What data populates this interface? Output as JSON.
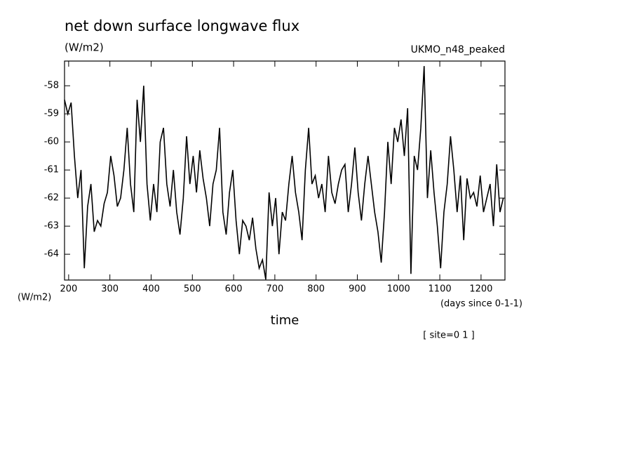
{
  "chart_data": {
    "type": "line",
    "title": "net down surface longwave flux",
    "units_label": "(W/m2)",
    "dataset": "UKMO_n48_peaked",
    "y_axis_units": "(W/m2)",
    "x_axis_units": "(days since 0-1-1)",
    "xlabel": "time",
    "annotation": "[ site=0 1 ]",
    "xlim": [
      190,
      1258
    ],
    "ylim": [
      -64.92,
      -57.12
    ],
    "xticks": [
      200,
      300,
      400,
      500,
      600,
      700,
      800,
      900,
      1000,
      1100,
      1200
    ],
    "yticks": [
      -58,
      -59,
      -60,
      -61,
      -62,
      -63,
      -64
    ],
    "color": "#000000",
    "x": [
      190,
      198,
      206,
      214,
      222,
      230,
      238,
      246,
      254,
      262,
      270,
      278,
      286,
      294,
      302,
      310,
      318,
      326,
      334,
      342,
      350,
      358,
      366,
      374,
      382,
      390,
      398,
      406,
      414,
      422,
      430,
      438,
      446,
      454,
      462,
      470,
      478,
      486,
      494,
      502,
      510,
      518,
      526,
      534,
      542,
      550,
      558,
      566,
      574,
      582,
      590,
      598,
      606,
      614,
      622,
      630,
      638,
      646,
      654,
      662,
      670,
      678,
      686,
      694,
      702,
      710,
      718,
      726,
      734,
      742,
      750,
      758,
      766,
      774,
      782,
      790,
      798,
      806,
      814,
      822,
      830,
      838,
      846,
      854,
      862,
      870,
      878,
      886,
      894,
      902,
      910,
      918,
      926,
      934,
      942,
      950,
      958,
      966,
      974,
      982,
      990,
      998,
      1006,
      1014,
      1022,
      1030,
      1038,
      1046,
      1054,
      1062,
      1070,
      1078,
      1086,
      1094,
      1102,
      1110,
      1118,
      1126,
      1134,
      1142,
      1150,
      1158,
      1166,
      1174,
      1182,
      1190,
      1198,
      1206,
      1214,
      1222,
      1230,
      1238,
      1246,
      1254
    ],
    "values": [
      -58.5,
      -59.0,
      -58.6,
      -60.5,
      -62.0,
      -61.0,
      -64.5,
      -62.3,
      -61.5,
      -63.2,
      -62.8,
      -63.0,
      -62.2,
      -61.8,
      -60.5,
      -61.2,
      -62.3,
      -62.0,
      -61.0,
      -59.5,
      -61.5,
      -62.5,
      -58.5,
      -60.0,
      -58.0,
      -61.5,
      -62.8,
      -61.5,
      -62.5,
      -60.0,
      -59.5,
      -61.5,
      -62.3,
      -61.0,
      -62.5,
      -63.3,
      -62.0,
      -59.8,
      -61.5,
      -60.5,
      -61.8,
      -60.3,
      -61.3,
      -62.0,
      -63.0,
      -61.5,
      -61.0,
      -59.5,
      -62.5,
      -63.3,
      -61.8,
      -61.0,
      -62.8,
      -64.0,
      -62.8,
      -63.0,
      -63.5,
      -62.7,
      -63.8,
      -64.5,
      -64.2,
      -64.9,
      -61.8,
      -63.0,
      -62.0,
      -64.0,
      -62.5,
      -62.8,
      -61.5,
      -60.5,
      -61.8,
      -62.5,
      -63.5,
      -61.0,
      -59.5,
      -61.5,
      -61.2,
      -62.0,
      -61.5,
      -62.5,
      -60.5,
      -61.8,
      -62.2,
      -61.5,
      -61.0,
      -60.8,
      -62.5,
      -61.5,
      -60.2,
      -61.8,
      -62.8,
      -61.5,
      -60.5,
      -61.5,
      -62.5,
      -63.2,
      -64.3,
      -62.5,
      -60.0,
      -61.5,
      -59.5,
      -60.0,
      -59.2,
      -60.5,
      -58.8,
      -64.7,
      -60.5,
      -61.0,
      -59.5,
      -57.3,
      -62.0,
      -60.3,
      -61.8,
      -63.0,
      -64.5,
      -62.5,
      -61.5,
      -59.8,
      -61.0,
      -62.5,
      -61.2,
      -63.5,
      -61.3,
      -62.0,
      -61.8,
      -62.3,
      -61.2,
      -62.5,
      -62.0,
      -61.5,
      -63.0,
      -60.8,
      -62.5,
      -62.0
    ]
  }
}
